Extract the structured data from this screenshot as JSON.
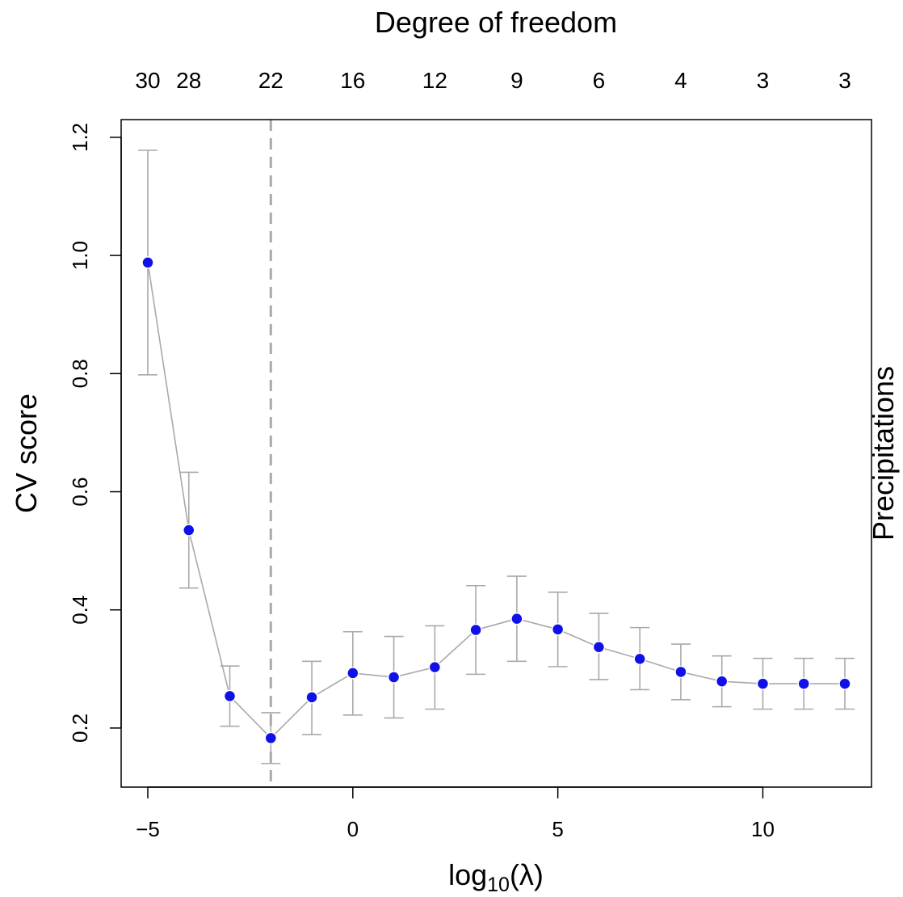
{
  "chart_data": {
    "type": "scatter",
    "top_title": "Degree of freedom",
    "side_title": "Precipitations",
    "ylabel": "CV score",
    "xlabel_base": "log",
    "xlabel_sub": "10",
    "xlabel_arg": "(λ)",
    "xlim": [
      -5.65,
      12.65
    ],
    "ylim": [
      0.1,
      1.23
    ],
    "x_ticks": [
      -5,
      0,
      5,
      10
    ],
    "x_tick_labels": [
      "−5",
      "0",
      "5",
      "10"
    ],
    "y_ticks": [
      0.2,
      0.4,
      0.6,
      0.8,
      1.0,
      1.2
    ],
    "y_tick_labels": [
      "0.2",
      "0.4",
      "0.6",
      "0.8",
      "1.0",
      "1.2"
    ],
    "top_ticks": [
      -5,
      -4,
      -2,
      0,
      2,
      4,
      6,
      8,
      10,
      12
    ],
    "top_tick_labels": [
      "30",
      "28",
      "22",
      "16",
      "12",
      "9",
      "6",
      "4",
      "3",
      "3"
    ],
    "x": [
      -5,
      -4,
      -3,
      -2,
      -1,
      0,
      1,
      2,
      3,
      4,
      5,
      6,
      7,
      8,
      9,
      10,
      11,
      12
    ],
    "y": [
      0.988,
      0.535,
      0.254,
      0.183,
      0.252,
      0.293,
      0.286,
      0.303,
      0.366,
      0.385,
      0.367,
      0.337,
      0.317,
      0.295,
      0.279,
      0.275,
      0.275,
      0.275
    ],
    "err_low": [
      0.798,
      0.437,
      0.203,
      0.14,
      0.189,
      0.222,
      0.217,
      0.232,
      0.291,
      0.313,
      0.304,
      0.282,
      0.265,
      0.248,
      0.236,
      0.232,
      0.232,
      0.232
    ],
    "err_high": [
      1.178,
      0.633,
      0.305,
      0.226,
      0.313,
      0.363,
      0.355,
      0.373,
      0.441,
      0.457,
      0.43,
      0.394,
      0.37,
      0.342,
      0.322,
      0.318,
      0.318,
      0.318
    ],
    "vline_x": -2,
    "colors": {
      "points": "#1010e8",
      "lines": "#a9a9a9",
      "vline": "#a9a9a9",
      "axis": "#000000"
    }
  }
}
